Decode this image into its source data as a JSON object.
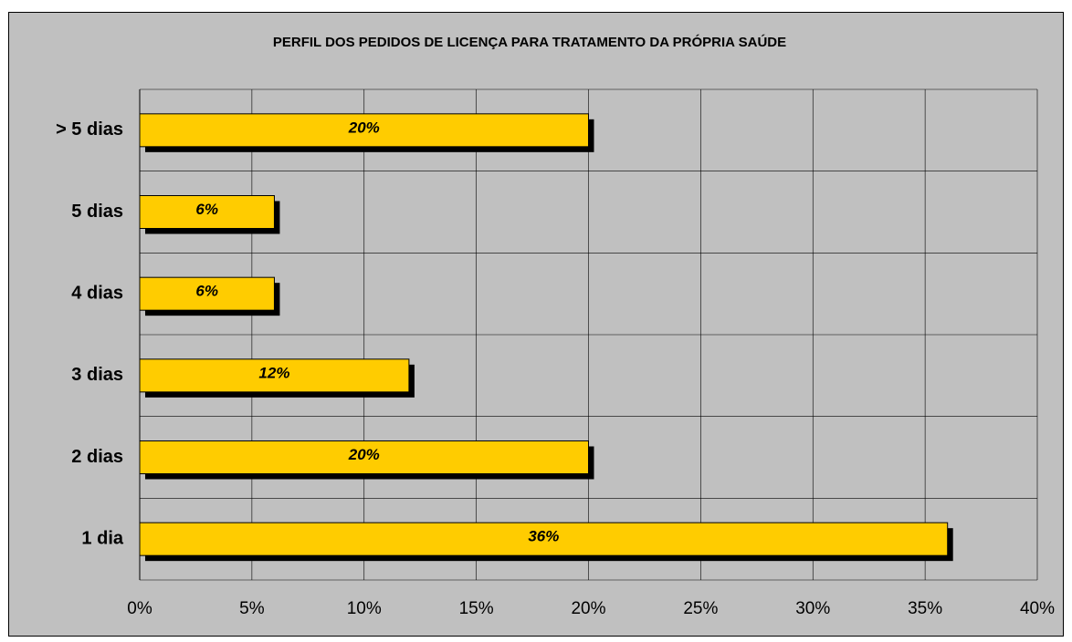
{
  "chart_data": {
    "type": "bar",
    "orientation": "horizontal",
    "title": "PERFIL DOS PEDIDOS DE LICENÇA PARA TRATAMENTO DA PRÓPRIA SAÚDE",
    "categories": [
      "> 5 dias",
      "5 dias",
      "4 dias",
      "3 dias",
      "2 dias",
      "1 dia"
    ],
    "values": [
      20,
      6,
      6,
      12,
      20,
      36
    ],
    "value_labels": [
      "20%",
      "6%",
      "6%",
      "12%",
      "20%",
      "36%"
    ],
    "color": "#ffcc00",
    "xlim": [
      0,
      40
    ],
    "xticks": [
      {
        "value": 0,
        "label": "0%"
      },
      {
        "value": 5,
        "label": "5%"
      },
      {
        "value": 10,
        "label": "10%"
      },
      {
        "value": 15,
        "label": "15%"
      },
      {
        "value": 20,
        "label": "20%"
      },
      {
        "value": 25,
        "label": "25%"
      },
      {
        "value": 30,
        "label": "30%"
      },
      {
        "value": 35,
        "label": "35%"
      },
      {
        "value": 40,
        "label": "40%"
      }
    ],
    "grid": true
  }
}
